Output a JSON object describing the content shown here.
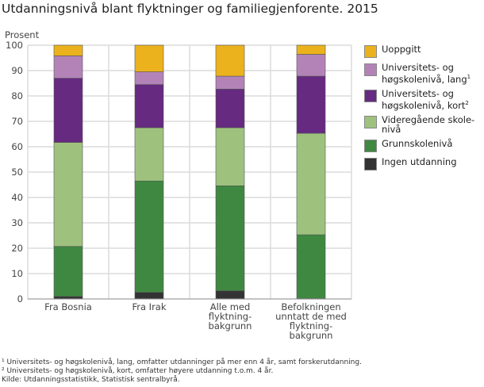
{
  "title": "Utdanningsnivå blant flyktninger og familiegjenforente. 2015",
  "chart_data": {
    "type": "bar",
    "stacked": true,
    "title": "Utdanningsnivå blant flyktninger og familiegjenforente. 2015",
    "ylabel": "Prosent",
    "ylim": [
      0,
      100
    ],
    "yticks": [
      0,
      10,
      20,
      30,
      40,
      50,
      60,
      70,
      80,
      90,
      100
    ],
    "grid": true,
    "legend_position": "right",
    "categories": [
      "Fra Bosnia",
      "Fra Irak",
      "Alle med\nflyktning-\nbakgrunn",
      "Befolkningen\nunntatt de med\nflyktning-\nbakgrunn"
    ],
    "series": [
      {
        "name": "Ingen utdanning",
        "color": "#333333",
        "values": [
          1.0,
          2.6,
          3.2,
          0.2
        ]
      },
      {
        "name": "Grunnskolenivå",
        "color": "#3f8841",
        "values": [
          19.7,
          43.9,
          41.4,
          25.1
        ]
      },
      {
        "name": "Videregående skole-\nnivå",
        "color": "#9ec27e",
        "values": [
          41.0,
          21.0,
          22.9,
          40.0
        ]
      },
      {
        "name": "Universitets- og\nhøgskolenivå, kort",
        "sup": "2",
        "color": "#662a80",
        "values": [
          25.3,
          17.0,
          15.2,
          22.5
        ]
      },
      {
        "name": "Universitets- og\nhøgskolenivå, lang",
        "sup": "1",
        "color": "#b383b8",
        "values": [
          8.8,
          5.0,
          5.1,
          8.6
        ]
      },
      {
        "name": "Uoppgitt",
        "color": "#ebb21d",
        "values": [
          4.2,
          10.5,
          12.2,
          3.6
        ]
      }
    ]
  },
  "notes": [
    "¹ Universitets- og høgskolenivå, lang, omfatter utdanninger på mer enn 4 år, samt forskerutdanning.",
    "² Universitets- og høgskolenivå, kort, omfatter høyere utdanning t.o.m. 4 år.",
    "Kilde: Utdanningsstatistikk, Statistisk sentralbyrå."
  ]
}
